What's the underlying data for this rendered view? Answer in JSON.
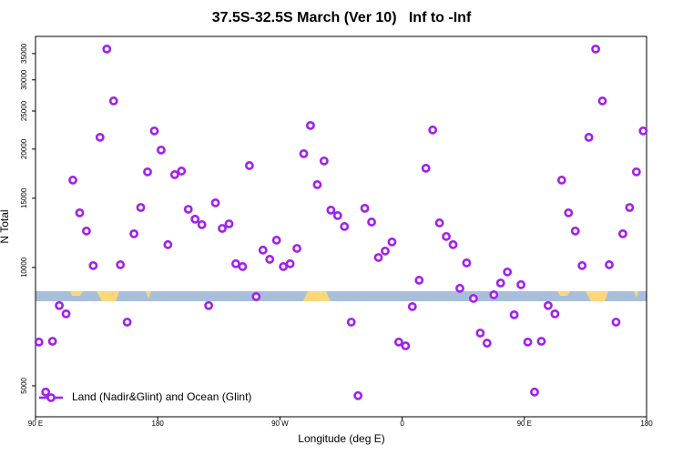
{
  "chart_data": {
    "type": "scatter",
    "title": "37.5S-32.5S March (Ver 10)   Inf to -Inf",
    "x_label": "Longitude (deg E)",
    "y_label": "N Total",
    "log_y": true,
    "legend": "bottom-left",
    "xlim": [
      90,
      540
    ],
    "ylim": [
      4170,
      38700
    ],
    "xticks": [
      {
        "value": 90,
        "label": "90 E"
      },
      {
        "value": 180,
        "label": "180"
      },
      {
        "value": 270,
        "label": "90 W"
      },
      {
        "value": 360,
        "label": "0"
      },
      {
        "value": 450,
        "label": "90 E"
      },
      {
        "value": 540,
        "label": "180"
      }
    ],
    "yticks": [
      5000,
      10000,
      15000,
      20000,
      25000,
      30000,
      35000
    ],
    "x": [
      92.5,
      97.5,
      102.5,
      107.5,
      112.5,
      117.5,
      122.5,
      127.5,
      132.5,
      137.5,
      142.5,
      147.5,
      152.5,
      157.5,
      162.5,
      167.5,
      172.5,
      177.5,
      182.5,
      187.5,
      192.5,
      197.5,
      202.5,
      207.5,
      212.5,
      217.5,
      222.5,
      227.5,
      232.5,
      237.5,
      242.5,
      247.5,
      252.5,
      257.5,
      262.5,
      267.5,
      272.5,
      277.5,
      282.5,
      287.5,
      292.5,
      297.5,
      302.5,
      307.5,
      312.5,
      317.5,
      322.5,
      327.5,
      332.5,
      337.5,
      342.5,
      347.5,
      352.5,
      357.5,
      362.5,
      367.5,
      372.5,
      377.5,
      382.5,
      387.5,
      392.5,
      397.5,
      402.5,
      407.5,
      412.5,
      417.5,
      422.5,
      427.5,
      432.5,
      437.5,
      442.5,
      447.5,
      452.5,
      457.5,
      462.5,
      467.5,
      472.5,
      477.5,
      482.5,
      487.5,
      492.5,
      497.5,
      502.5,
      507.5,
      512.5,
      517.5,
      522.5,
      527.5,
      532.5,
      537.5
    ],
    "series": [
      {
        "name": "Land (Nadir&Glint) and Ocean (Glint)",
        "color": "#a020f0",
        "values": [
          6460,
          4820,
          6490,
          8000,
          7620,
          16680,
          13770,
          12380,
          10110,
          21430,
          35940,
          26520,
          10160,
          7260,
          12180,
          14210,
          17500,
          22250,
          19890,
          11430,
          17220,
          17590,
          14060,
          13270,
          12850,
          8000,
          14600,
          12570,
          12910,
          10220,
          10050,
          18160,
          8430,
          11070,
          10490,
          11730,
          10050,
          10220,
          11180,
          19470,
          22970,
          16240,
          18660,
          13990,
          13550,
          12710,
          7260,
          4720,
          14140,
          13050,
          10600,
          11010,
          11610,
          6460,
          6320,
          7950,
          9280,
          17880,
          22370,
          12980,
          11990,
          11430,
          8850,
          10270,
          8340,
          6810,
          6420,
          8520,
          9130,
          9740,
          7580,
          9040,
          6460,
          4820,
          6490,
          8000,
          7620,
          16680,
          13770,
          12380,
          10110,
          21430,
          35940,
          26520,
          10160,
          7260,
          12180,
          14210,
          17500,
          22250
        ]
      }
    ]
  }
}
